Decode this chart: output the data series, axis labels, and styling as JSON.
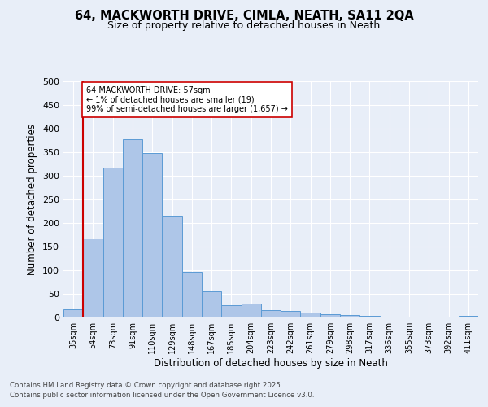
{
  "title_line1": "64, MACKWORTH DRIVE, CIMLA, NEATH, SA11 2QA",
  "title_line2": "Size of property relative to detached houses in Neath",
  "xlabel": "Distribution of detached houses by size in Neath",
  "ylabel": "Number of detached properties",
  "bar_labels": [
    "35sqm",
    "54sqm",
    "73sqm",
    "91sqm",
    "110sqm",
    "129sqm",
    "148sqm",
    "167sqm",
    "185sqm",
    "204sqm",
    "223sqm",
    "242sqm",
    "261sqm",
    "279sqm",
    "298sqm",
    "317sqm",
    "336sqm",
    "355sqm",
    "373sqm",
    "392sqm",
    "411sqm"
  ],
  "bar_heights": [
    18,
    168,
    317,
    378,
    349,
    216,
    96,
    55,
    26,
    30,
    16,
    13,
    10,
    7,
    5,
    3,
    0,
    0,
    2,
    0,
    4
  ],
  "bar_color": "#aec6e8",
  "bar_edge_color": "#5b9bd5",
  "vline_x_idx": 1,
  "vline_color": "#cc0000",
  "annotation_text": "64 MACKWORTH DRIVE: 57sqm\n← 1% of detached houses are smaller (19)\n99% of semi-detached houses are larger (1,657) →",
  "annotation_box_color": "#ffffff",
  "annotation_box_edge": "#cc0000",
  "ylim": [
    0,
    500
  ],
  "yticks": [
    0,
    50,
    100,
    150,
    200,
    250,
    300,
    350,
    400,
    450,
    500
  ],
  "footer_line1": "Contains HM Land Registry data © Crown copyright and database right 2025.",
  "footer_line2": "Contains public sector information licensed under the Open Government Licence v3.0.",
  "bg_color": "#e8eef8",
  "plot_bg_color": "#e8eef8"
}
